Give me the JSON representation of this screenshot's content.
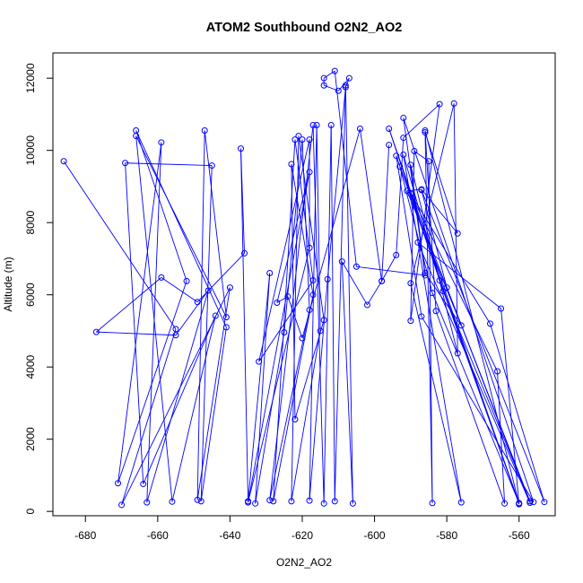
{
  "chart_data": {
    "type": "line",
    "title": "ATOM2 Southbound O2N2_AO2",
    "xlabel": "O2N2_AO2",
    "ylabel": "Altitude (m)",
    "xlim": [
      -689,
      -550
    ],
    "ylim": [
      -120,
      12700
    ],
    "x_ticks": [
      -680,
      -660,
      -640,
      -620,
      -600,
      -580,
      -560
    ],
    "y_ticks": [
      0,
      2000,
      4000,
      6000,
      8000,
      10000,
      12000
    ],
    "grid": false,
    "legend": "none",
    "colors": {
      "series": "#0000ff",
      "axis": "#000000",
      "background": "#ffffff"
    },
    "series": [
      {
        "marker": "open-circle",
        "points": [
          {
            "x": -686,
            "y": 9700
          },
          {
            "x": -655,
            "y": 5050
          },
          {
            "x": -670,
            "y": 180
          },
          {
            "x": -640,
            "y": 6200
          },
          {
            "x": -649,
            "y": 320
          },
          {
            "x": -647,
            "y": 10550
          },
          {
            "x": -641,
            "y": 5380
          },
          {
            "x": -666,
            "y": 10400
          },
          {
            "x": -656,
            "y": 270
          },
          {
            "x": -644,
            "y": 5420
          },
          {
            "x": -664,
            "y": 760
          },
          {
            "x": -669,
            "y": 9650
          },
          {
            "x": -645,
            "y": 9580
          },
          {
            "x": -648,
            "y": 280
          },
          {
            "x": -641,
            "y": 5100
          },
          {
            "x": -666,
            "y": 10550
          },
          {
            "x": -652,
            "y": 6380
          },
          {
            "x": -671,
            "y": 780
          },
          {
            "x": -659,
            "y": 10220
          },
          {
            "x": -663,
            "y": 250
          },
          {
            "x": -646,
            "y": 6120
          },
          {
            "x": -655,
            "y": 4880
          },
          {
            "x": -677,
            "y": 4970
          },
          {
            "x": -659,
            "y": 6480
          },
          {
            "x": -649,
            "y": 5800
          },
          {
            "x": -636,
            "y": 7150
          },
          {
            "x": -637,
            "y": 10050
          },
          {
            "x": -635,
            "y": 280
          },
          {
            "x": -629,
            "y": 6600
          },
          {
            "x": -633,
            "y": 220
          },
          {
            "x": -625,
            "y": 4960
          },
          {
            "x": -620,
            "y": 10300
          },
          {
            "x": -618,
            "y": 5580
          },
          {
            "x": -629,
            "y": 310
          },
          {
            "x": -617,
            "y": 10700
          },
          {
            "x": -614,
            "y": 220
          },
          {
            "x": -612,
            "y": 10700
          },
          {
            "x": -611,
            "y": 280
          },
          {
            "x": -608,
            "y": 11800
          },
          {
            "x": -606,
            "y": 220
          },
          {
            "x": -609,
            "y": 6920
          },
          {
            "x": -602,
            "y": 5720
          },
          {
            "x": -598,
            "y": 6380
          },
          {
            "x": -594,
            "y": 7100
          },
          {
            "x": -592,
            "y": 10350
          },
          {
            "x": -582,
            "y": 11280
          },
          {
            "x": -590,
            "y": 5280
          },
          {
            "x": -589,
            "y": 9980
          },
          {
            "x": -585,
            "y": 9700
          },
          {
            "x": -584,
            "y": 230
          },
          {
            "x": -586,
            "y": 10500
          },
          {
            "x": -577,
            "y": 7700
          },
          {
            "x": -587,
            "y": 8920
          },
          {
            "x": -591,
            "y": 8880
          },
          {
            "x": -576,
            "y": 5150
          },
          {
            "x": -586,
            "y": 6600
          },
          {
            "x": -590,
            "y": 9600
          },
          {
            "x": -577,
            "y": 4380
          },
          {
            "x": -578,
            "y": 11300
          },
          {
            "x": -590,
            "y": 6320
          },
          {
            "x": -576,
            "y": 250
          },
          {
            "x": -592,
            "y": 9880
          },
          {
            "x": -582,
            "y": 6400
          },
          {
            "x": -560,
            "y": 210
          },
          {
            "x": -586,
            "y": 10550
          },
          {
            "x": -583,
            "y": 5550
          },
          {
            "x": -564,
            "y": 220
          },
          {
            "x": -566,
            "y": 3880
          },
          {
            "x": -590,
            "y": 8800
          },
          {
            "x": -568,
            "y": 5200
          },
          {
            "x": -553,
            "y": 260
          },
          {
            "x": -587,
            "y": 8900
          },
          {
            "x": -580,
            "y": 6200
          },
          {
            "x": -557,
            "y": 240
          },
          {
            "x": -588,
            "y": 7450
          },
          {
            "x": -565,
            "y": 5620
          },
          {
            "x": -560,
            "y": 200
          },
          {
            "x": -596,
            "y": 10600
          },
          {
            "x": -581,
            "y": 6100
          },
          {
            "x": -557,
            "y": 280
          },
          {
            "x": -593,
            "y": 9550
          },
          {
            "x": -584,
            "y": 6050
          },
          {
            "x": -560,
            "y": 230
          },
          {
            "x": -594,
            "y": 9850
          },
          {
            "x": -587,
            "y": 5400
          },
          {
            "x": -556,
            "y": 260
          },
          {
            "x": -592,
            "y": 10900
          },
          {
            "x": -586,
            "y": 6540
          },
          {
            "x": -605,
            "y": 6780
          },
          {
            "x": -611,
            "y": 12200
          },
          {
            "x": -614,
            "y": 12000
          },
          {
            "x": -614,
            "y": 11800
          },
          {
            "x": -610,
            "y": 11650
          },
          {
            "x": -607,
            "y": 12000
          },
          {
            "x": -608,
            "y": 11750
          },
          {
            "x": -613,
            "y": 6430
          },
          {
            "x": -618,
            "y": 300
          },
          {
            "x": -616,
            "y": 10700
          },
          {
            "x": -615,
            "y": 5000
          },
          {
            "x": -623,
            "y": 280
          },
          {
            "x": -621,
            "y": 10400
          },
          {
            "x": -614,
            "y": 5300
          },
          {
            "x": -622,
            "y": 2550
          },
          {
            "x": -623,
            "y": 9620
          },
          {
            "x": -617,
            "y": 6000
          },
          {
            "x": -628,
            "y": 280
          },
          {
            "x": -622,
            "y": 10300
          },
          {
            "x": -617,
            "y": 6400
          },
          {
            "x": -632,
            "y": 4150
          },
          {
            "x": -618,
            "y": 10300
          },
          {
            "x": -618,
            "y": 7300
          },
          {
            "x": -635,
            "y": 250
          },
          {
            "x": -618,
            "y": 9400
          },
          {
            "x": -627,
            "y": 5780
          },
          {
            "x": -624,
            "y": 5950
          },
          {
            "x": -620,
            "y": 4800
          },
          {
            "x": -604,
            "y": 10600
          },
          {
            "x": -598,
            "y": 6380
          },
          {
            "x": -596,
            "y": 10150
          }
        ]
      }
    ]
  }
}
